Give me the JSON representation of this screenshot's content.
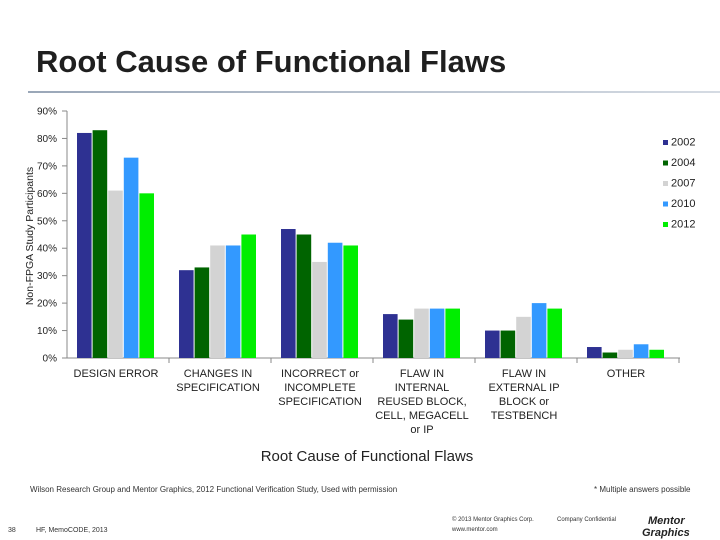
{
  "slide": {
    "title": "Root Cause of Functional Flaws",
    "source": "Wilson Research Group and Mentor Graphics, 2012 Functional Verification Study,   Used with permission",
    "note": "* Multiple answers possible",
    "page_number": "38",
    "footer_left": "HF, MemoCODE, 2013",
    "copyright": "© 2013 Mentor Graphics Corp.",
    "confidential": "Company Confidential",
    "url": "www.mentor.com",
    "logo_text": "Mentor Graphics"
  },
  "chart_data": {
    "type": "bar",
    "xlabel": "Root Cause of Functional Flaws",
    "ylabel": "Non-FPGA Study Participants",
    "ylim": [
      0,
      90
    ],
    "yticks": [
      "0%",
      "10%",
      "20%",
      "30%",
      "40%",
      "50%",
      "60%",
      "70%",
      "80%",
      "90%"
    ],
    "grid": false,
    "legend_position": "right",
    "categories": [
      [
        "DESIGN ERROR"
      ],
      [
        "CHANGES IN",
        "SPECIFICATION"
      ],
      [
        "INCORRECT or",
        "INCOMPLETE",
        "SPECIFICATION"
      ],
      [
        "FLAW IN",
        "INTERNAL",
        "REUSED BLOCK,",
        "CELL, MEGACELL",
        "or IP"
      ],
      [
        "FLAW IN",
        "EXTERNAL IP",
        "BLOCK or",
        "TESTBENCH"
      ],
      [
        "OTHER"
      ]
    ],
    "series": [
      {
        "name": "2002",
        "color": "#2e3192",
        "values": [
          82,
          32,
          47,
          16,
          10,
          4
        ]
      },
      {
        "name": "2004",
        "color": "#006400",
        "values": [
          83,
          33,
          45,
          14,
          10,
          2
        ]
      },
      {
        "name": "2007",
        "color": "#d3d3d3",
        "values": [
          61,
          41,
          35,
          18,
          15,
          3
        ]
      },
      {
        "name": "2010",
        "color": "#3399ff",
        "values": [
          73,
          41,
          42,
          18,
          20,
          5
        ]
      },
      {
        "name": "2012",
        "color": "#00ee00",
        "values": [
          60,
          45,
          41,
          18,
          18,
          3
        ]
      }
    ]
  }
}
